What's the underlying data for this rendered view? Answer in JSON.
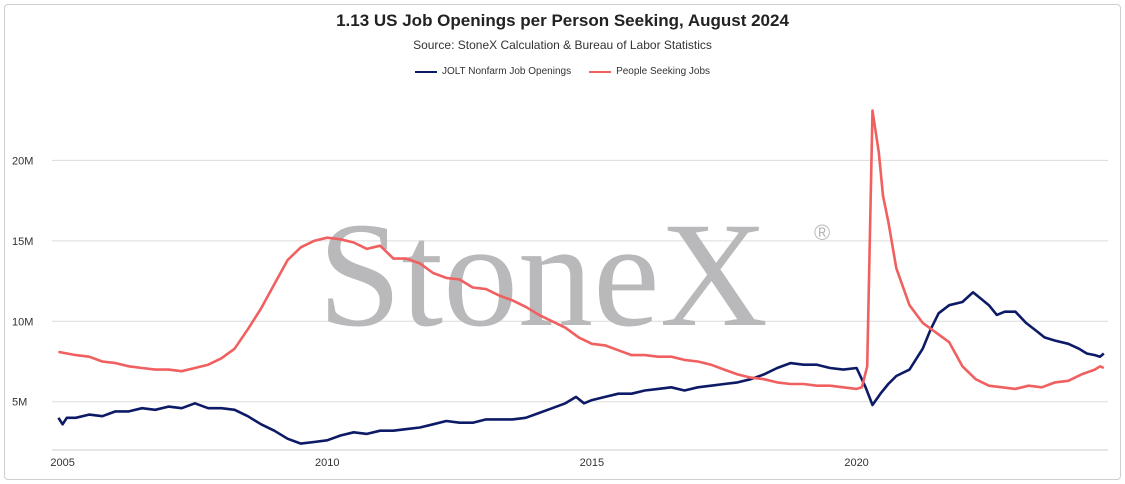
{
  "chart_data": {
    "type": "line",
    "title": "1.13 US Job Openings per Person Seeking, August 2024",
    "subtitle": "Source: StoneX Calculation & Bureau of Labor Statistics",
    "watermark": "StoneX",
    "watermark_mark": "®",
    "xlabel": "",
    "ylabel": "",
    "xlim": [
      2004.8,
      2024.75
    ],
    "ylim": [
      2.0,
      25.0
    ],
    "x_ticks": [
      2005,
      2010,
      2015,
      2020
    ],
    "y_ticks": [
      5,
      10,
      15,
      20
    ],
    "y_tick_labels": [
      "5M",
      "10M",
      "15M",
      "20M"
    ],
    "grid": "horizontal",
    "legend_position": "top-center",
    "series": [
      {
        "name": "JOLT Nonfarm Job Openings",
        "color": "#0d1a66",
        "points": [
          [
            2004.92,
            4.0
          ],
          [
            2005.0,
            3.6
          ],
          [
            2005.08,
            4.0
          ],
          [
            2005.25,
            4.0
          ],
          [
            2005.5,
            4.2
          ],
          [
            2005.75,
            4.1
          ],
          [
            2006.0,
            4.4
          ],
          [
            2006.25,
            4.4
          ],
          [
            2006.5,
            4.6
          ],
          [
            2006.75,
            4.5
          ],
          [
            2007.0,
            4.7
          ],
          [
            2007.25,
            4.6
          ],
          [
            2007.5,
            4.9
          ],
          [
            2007.75,
            4.6
          ],
          [
            2008.0,
            4.6
          ],
          [
            2008.25,
            4.5
          ],
          [
            2008.5,
            4.1
          ],
          [
            2008.75,
            3.6
          ],
          [
            2009.0,
            3.2
          ],
          [
            2009.25,
            2.7
          ],
          [
            2009.5,
            2.4
          ],
          [
            2009.75,
            2.5
          ],
          [
            2010.0,
            2.6
          ],
          [
            2010.25,
            2.9
          ],
          [
            2010.5,
            3.1
          ],
          [
            2010.75,
            3.0
          ],
          [
            2011.0,
            3.2
          ],
          [
            2011.25,
            3.2
          ],
          [
            2011.5,
            3.3
          ],
          [
            2011.75,
            3.4
          ],
          [
            2012.0,
            3.6
          ],
          [
            2012.25,
            3.8
          ],
          [
            2012.5,
            3.7
          ],
          [
            2012.75,
            3.7
          ],
          [
            2013.0,
            3.9
          ],
          [
            2013.25,
            3.9
          ],
          [
            2013.5,
            3.9
          ],
          [
            2013.75,
            4.0
          ],
          [
            2014.0,
            4.3
          ],
          [
            2014.25,
            4.6
          ],
          [
            2014.5,
            4.9
          ],
          [
            2014.7,
            5.3
          ],
          [
            2014.85,
            4.9
          ],
          [
            2015.0,
            5.1
          ],
          [
            2015.25,
            5.3
          ],
          [
            2015.5,
            5.5
          ],
          [
            2015.75,
            5.5
          ],
          [
            2016.0,
            5.7
          ],
          [
            2016.25,
            5.8
          ],
          [
            2016.5,
            5.9
          ],
          [
            2016.75,
            5.7
          ],
          [
            2017.0,
            5.9
          ],
          [
            2017.25,
            6.0
          ],
          [
            2017.5,
            6.1
          ],
          [
            2017.75,
            6.2
          ],
          [
            2018.0,
            6.4
          ],
          [
            2018.25,
            6.7
          ],
          [
            2018.5,
            7.1
          ],
          [
            2018.75,
            7.4
          ],
          [
            2019.0,
            7.3
          ],
          [
            2019.25,
            7.3
          ],
          [
            2019.5,
            7.1
          ],
          [
            2019.75,
            7.0
          ],
          [
            2020.0,
            7.1
          ],
          [
            2020.17,
            5.9
          ],
          [
            2020.3,
            4.8
          ],
          [
            2020.45,
            5.5
          ],
          [
            2020.6,
            6.1
          ],
          [
            2020.75,
            6.6
          ],
          [
            2021.0,
            7.0
          ],
          [
            2021.25,
            8.3
          ],
          [
            2021.4,
            9.5
          ],
          [
            2021.55,
            10.5
          ],
          [
            2021.75,
            11.0
          ],
          [
            2022.0,
            11.2
          ],
          [
            2022.2,
            11.8
          ],
          [
            2022.35,
            11.4
          ],
          [
            2022.5,
            11.0
          ],
          [
            2022.65,
            10.4
          ],
          [
            2022.8,
            10.6
          ],
          [
            2023.0,
            10.6
          ],
          [
            2023.2,
            9.9
          ],
          [
            2023.4,
            9.4
          ],
          [
            2023.55,
            9.0
          ],
          [
            2023.75,
            8.8
          ],
          [
            2024.0,
            8.6
          ],
          [
            2024.2,
            8.3
          ],
          [
            2024.35,
            8.0
          ],
          [
            2024.5,
            7.9
          ],
          [
            2024.6,
            7.8
          ],
          [
            2024.67,
            8.0
          ]
        ]
      },
      {
        "name": "People Seeking Jobs",
        "color": "#f06060",
        "points": [
          [
            2004.92,
            8.1
          ],
          [
            2005.25,
            7.9
          ],
          [
            2005.5,
            7.8
          ],
          [
            2005.75,
            7.5
          ],
          [
            2006.0,
            7.4
          ],
          [
            2006.25,
            7.2
          ],
          [
            2006.5,
            7.1
          ],
          [
            2006.75,
            7.0
          ],
          [
            2007.0,
            7.0
          ],
          [
            2007.25,
            6.9
          ],
          [
            2007.5,
            7.1
          ],
          [
            2007.75,
            7.3
          ],
          [
            2008.0,
            7.7
          ],
          [
            2008.25,
            8.3
          ],
          [
            2008.5,
            9.5
          ],
          [
            2008.75,
            10.8
          ],
          [
            2009.0,
            12.3
          ],
          [
            2009.25,
            13.8
          ],
          [
            2009.5,
            14.6
          ],
          [
            2009.75,
            15.0
          ],
          [
            2010.0,
            15.2
          ],
          [
            2010.25,
            15.1
          ],
          [
            2010.5,
            14.9
          ],
          [
            2010.75,
            14.5
          ],
          [
            2011.0,
            14.7
          ],
          [
            2011.25,
            13.9
          ],
          [
            2011.5,
            13.9
          ],
          [
            2011.75,
            13.6
          ],
          [
            2012.0,
            13.0
          ],
          [
            2012.25,
            12.7
          ],
          [
            2012.5,
            12.6
          ],
          [
            2012.75,
            12.1
          ],
          [
            2013.0,
            12.0
          ],
          [
            2013.25,
            11.6
          ],
          [
            2013.5,
            11.3
          ],
          [
            2013.75,
            10.9
          ],
          [
            2014.0,
            10.4
          ],
          [
            2014.25,
            10.0
          ],
          [
            2014.5,
            9.6
          ],
          [
            2014.75,
            9.0
          ],
          [
            2015.0,
            8.6
          ],
          [
            2015.25,
            8.5
          ],
          [
            2015.5,
            8.2
          ],
          [
            2015.75,
            7.9
          ],
          [
            2016.0,
            7.9
          ],
          [
            2016.25,
            7.8
          ],
          [
            2016.5,
            7.8
          ],
          [
            2016.75,
            7.6
          ],
          [
            2017.0,
            7.5
          ],
          [
            2017.25,
            7.3
          ],
          [
            2017.5,
            7.0
          ],
          [
            2017.75,
            6.7
          ],
          [
            2018.0,
            6.5
          ],
          [
            2018.25,
            6.4
          ],
          [
            2018.5,
            6.2
          ],
          [
            2018.75,
            6.1
          ],
          [
            2019.0,
            6.1
          ],
          [
            2019.25,
            6.0
          ],
          [
            2019.5,
            6.0
          ],
          [
            2019.75,
            5.9
          ],
          [
            2020.0,
            5.8
          ],
          [
            2020.1,
            5.9
          ],
          [
            2020.2,
            7.2
          ],
          [
            2020.3,
            23.1
          ],
          [
            2020.42,
            20.5
          ],
          [
            2020.5,
            17.8
          ],
          [
            2020.6,
            16.2
          ],
          [
            2020.75,
            13.3
          ],
          [
            2021.0,
            11.0
          ],
          [
            2021.25,
            9.9
          ],
          [
            2021.5,
            9.3
          ],
          [
            2021.75,
            8.7
          ],
          [
            2022.0,
            7.2
          ],
          [
            2022.25,
            6.4
          ],
          [
            2022.5,
            6.0
          ],
          [
            2022.75,
            5.9
          ],
          [
            2023.0,
            5.8
          ],
          [
            2023.25,
            6.0
          ],
          [
            2023.5,
            5.9
          ],
          [
            2023.75,
            6.2
          ],
          [
            2024.0,
            6.3
          ],
          [
            2024.25,
            6.7
          ],
          [
            2024.5,
            7.0
          ],
          [
            2024.6,
            7.2
          ],
          [
            2024.67,
            7.1
          ]
        ]
      }
    ]
  }
}
